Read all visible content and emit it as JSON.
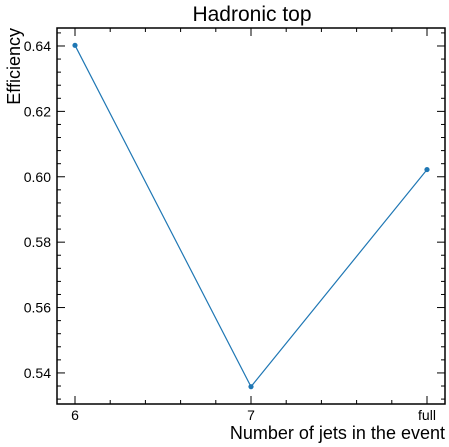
{
  "chart_data": {
    "type": "line",
    "title": "Hadronic top",
    "xlabel": "Number of jets in the event",
    "ylabel": "Efficiency",
    "categories": [
      "6",
      "7",
      "full"
    ],
    "series": [
      {
        "values": [
          0.6402,
          0.5358,
          0.6022
        ],
        "color": "#1f77b4"
      }
    ],
    "ylim": [
      0.5305,
      0.6455
    ],
    "yticks": [
      "0.54",
      "0.56",
      "0.58",
      "0.60",
      "0.62",
      "0.64"
    ],
    "grid": false,
    "legend": "none"
  }
}
